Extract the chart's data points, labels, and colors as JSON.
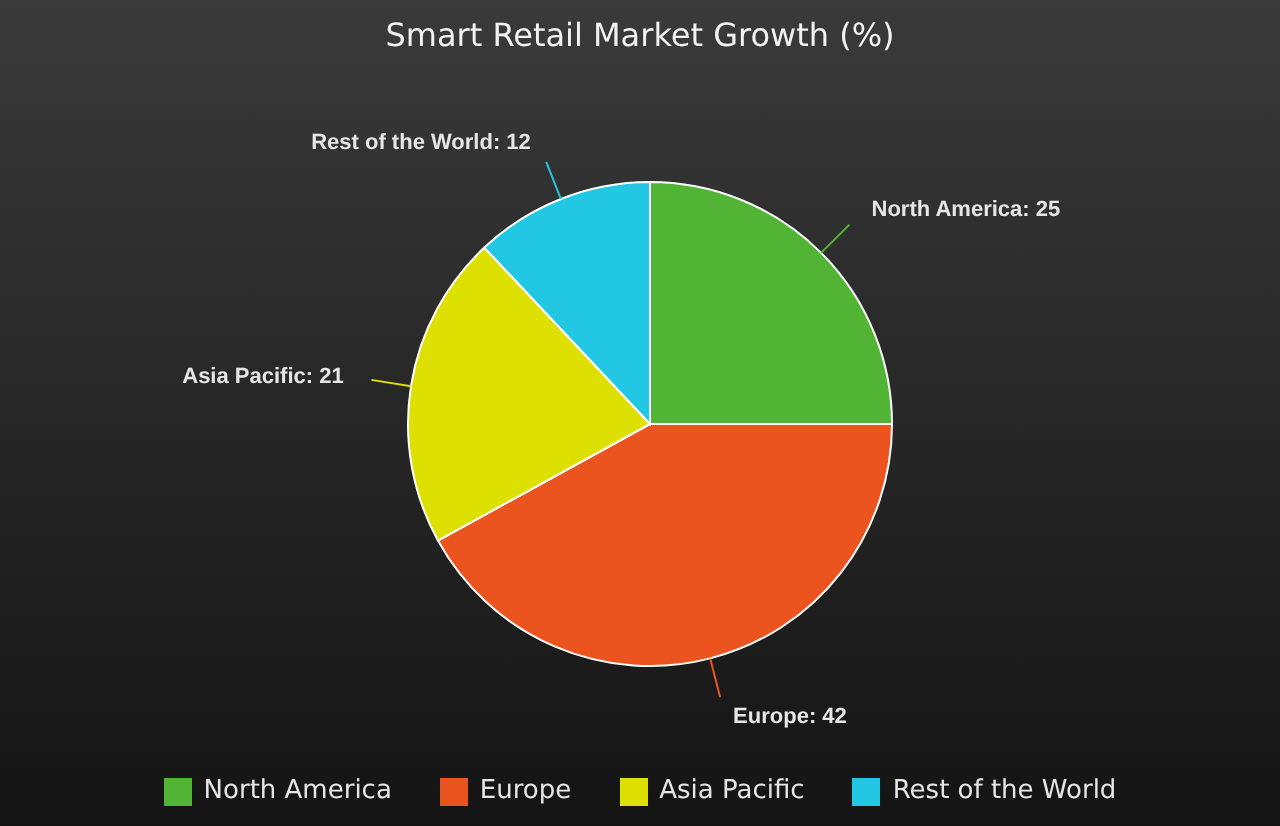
{
  "chart_data": {
    "type": "pie",
    "title": "Smart Retail Market Growth (%)",
    "categories": [
      "North America",
      "Europe",
      "Asia Pacific",
      "Rest of the World"
    ],
    "values": [
      25,
      42,
      21,
      12
    ],
    "colors": [
      "#52b435",
      "#eb541e",
      "#dde000",
      "#22c8e3"
    ],
    "value_labels": [
      "North America: 25",
      "Europe: 42",
      "Asia Pacific: 21",
      "Rest of the World: 12"
    ],
    "legend": "bottom"
  }
}
